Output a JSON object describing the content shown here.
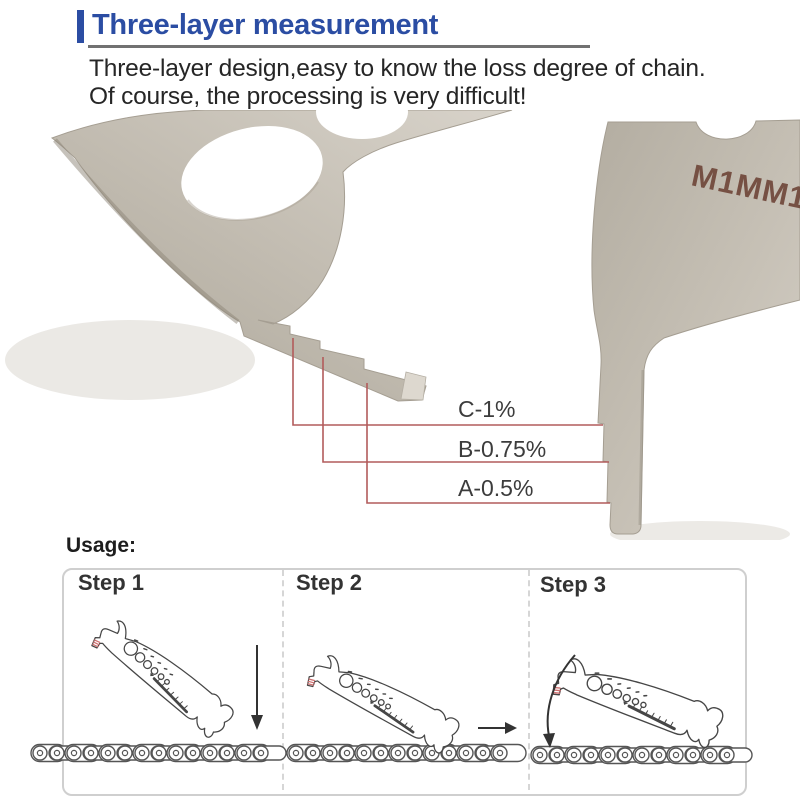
{
  "header": {
    "title": "Three-layer measurement",
    "description_line1": "Three-layer design,easy to know the loss degree of chain.",
    "description_line2": "Of course, the processing is very difficult!"
  },
  "diagram": {
    "engraving": "M1MM1",
    "labels": [
      {
        "id": "C",
        "text": "C-1%"
      },
      {
        "id": "B",
        "text": "B-0.75%"
      },
      {
        "id": "A",
        "text": "A-0.5%"
      }
    ]
  },
  "usage": {
    "heading": "Usage:",
    "steps": [
      {
        "label": "Step 1"
      },
      {
        "label": "Step 2"
      },
      {
        "label": "Step 3"
      }
    ]
  },
  "colors": {
    "accent_blue": "#2b4da3",
    "annotation_line_red": "#b25b5b",
    "engraving_brown": "#6e4538",
    "metal_gray": "#c2bcb1"
  }
}
